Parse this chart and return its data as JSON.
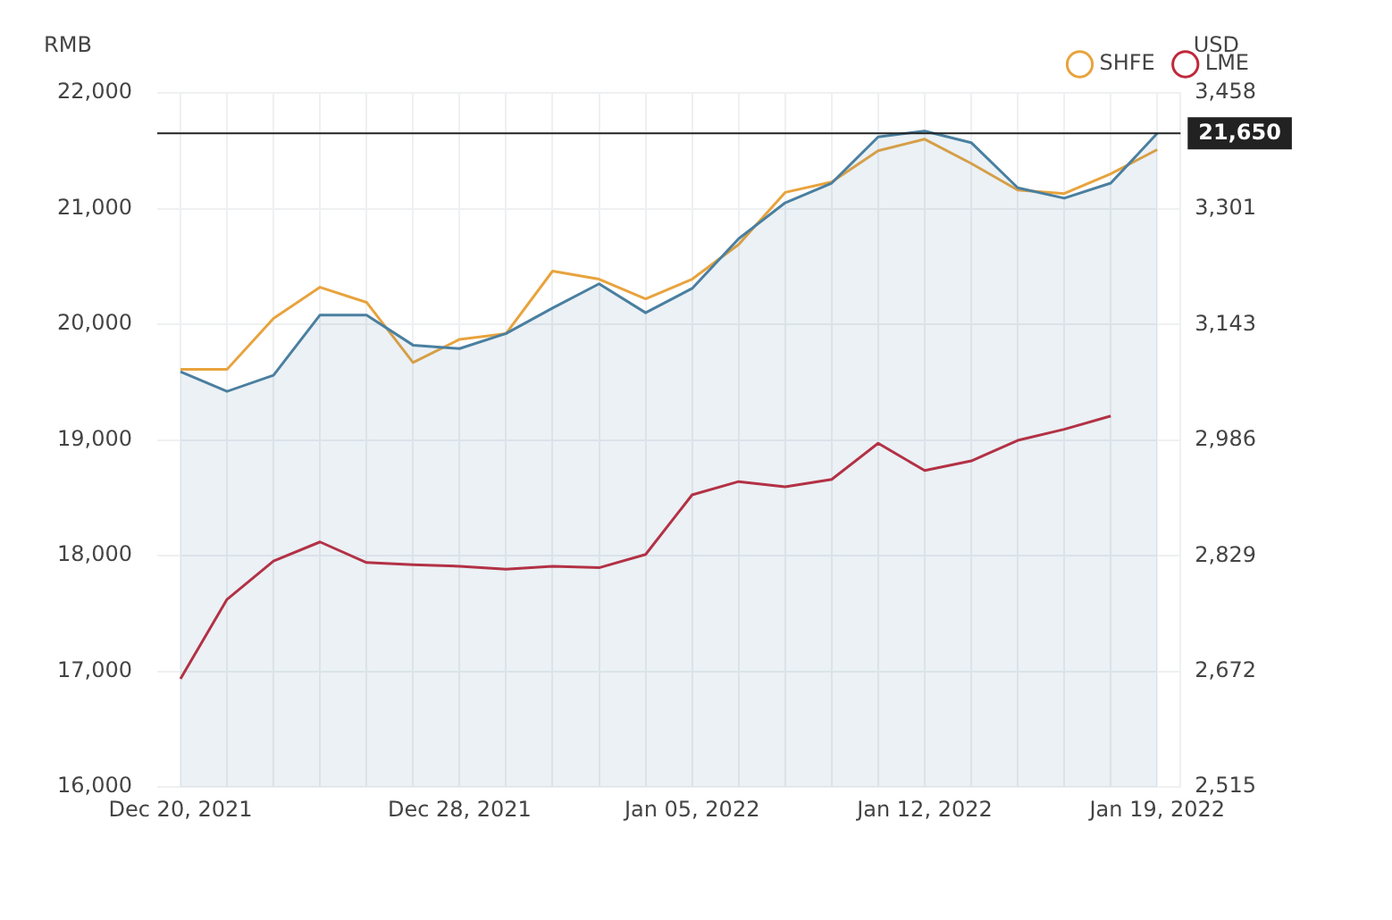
{
  "chart_data": {
    "type": "line",
    "ylabel": "RMB",
    "y2label": "USD",
    "categories": [
      "Dec 20, 2021",
      null,
      null,
      null,
      null,
      null,
      "Dec 28, 2021",
      null,
      null,
      null,
      null,
      "Jan 05, 2022",
      null,
      null,
      null,
      null,
      "Jan 12, 2022",
      null,
      null,
      null,
      null,
      "Jan 19, 2022"
    ],
    "series": [
      {
        "type": "area",
        "color": "#4a7fa0",
        "values": [
          19590,
          19420,
          19560,
          20080,
          20080,
          19820,
          19790,
          19920,
          20140,
          20350,
          20100,
          20310,
          20740,
          21050,
          21220,
          21620,
          21670,
          21570,
          21180,
          21090,
          21220,
          21650
        ]
      },
      {
        "name": "SHFE",
        "color": "#e8a33d",
        "values": [
          19610,
          19610,
          20050,
          20320,
          20190,
          19670,
          19870,
          19920,
          20460,
          20390,
          20220,
          20390,
          20690,
          21140,
          21230,
          21500,
          21600,
          21390,
          21160,
          21130,
          21300,
          21510
        ]
      },
      {
        "name": "LME",
        "color": "#c0283a",
        "axis": "y2",
        "values": [
          2662,
          2770,
          2822,
          2848,
          2820,
          2817,
          2815,
          2811,
          2815,
          2813,
          2831,
          2912,
          2930,
          2923,
          2933,
          2982,
          2945,
          2958,
          2986,
          3001,
          3019,
          null
        ]
      }
    ],
    "ylim": [
      16000,
      22000
    ],
    "yticks": [
      {
        "value": 16000,
        "label": "16,000"
      },
      {
        "value": 17000,
        "label": "17,000"
      },
      {
        "value": 18000,
        "label": "18,000"
      },
      {
        "value": 19000,
        "label": "19,000"
      },
      {
        "value": 20000,
        "label": "20,000"
      },
      {
        "value": 21000,
        "label": "21,000"
      },
      {
        "value": 22000,
        "label": "22,000"
      }
    ],
    "y2lim": [
      2515,
      3458
    ],
    "y2ticks": [
      {
        "value": 2515,
        "label": "2,515"
      },
      {
        "value": 2672,
        "label": "2,672"
      },
      {
        "value": 2829,
        "label": "2,829"
      },
      {
        "value": 2986,
        "label": "2,986"
      },
      {
        "value": 3143,
        "label": "3,143"
      },
      {
        "value": 3301,
        "label": "3,301"
      },
      {
        "value": 3458,
        "label": "3,458"
      }
    ],
    "ref_lines": [
      {
        "axis": "y",
        "value": 21650,
        "label": "21,650",
        "color": "#222222"
      }
    ],
    "grid": true,
    "legend": "top right",
    "marker": "none",
    "line_style": "solid"
  }
}
